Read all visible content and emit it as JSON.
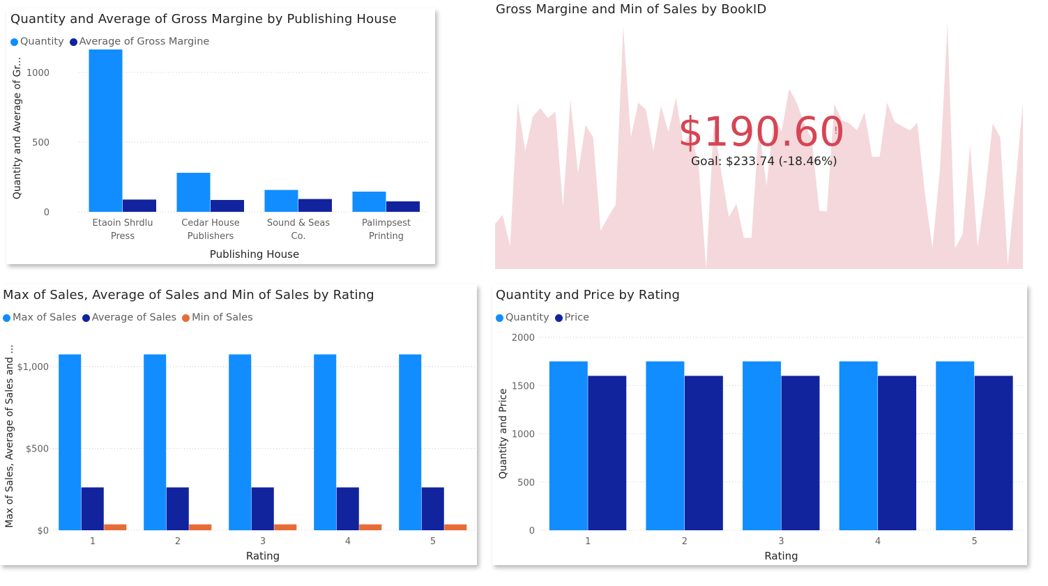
{
  "colors": {
    "light_blue": "#118DFF",
    "dark_blue": "#12239E",
    "orange": "#E66C37",
    "kpi_red": "#D64554",
    "kpi_area": "#F5D8DC",
    "text": "#252423",
    "muted": "#605E5C",
    "grid": "#C8C6C4"
  },
  "icons": {
    "legend_marker": "circle-marker-icon"
  },
  "kpi": {
    "title": "Gross Margine and Min of Sales by BookID",
    "value": "$190.60",
    "indicator": "!",
    "goal_text": "Goal: $233.74 (-18.46%)"
  },
  "chart_data": [
    {
      "id": "publishing",
      "type": "bar",
      "title": "Quantity and Average of Gross Margine by Publishing House",
      "xlabel": "Publishing House",
      "ylabel": "Quantity and Average of Gr...",
      "categories": [
        [
          "Etaoin Shrdlu",
          "Press"
        ],
        [
          "Cedar House",
          "Publishers"
        ],
        [
          "Sound & Seas",
          "Co."
        ],
        [
          "Palimpsest",
          "Printing"
        ]
      ],
      "series": [
        {
          "name": "Quantity",
          "color": "#118DFF",
          "values": [
            1165,
            280,
            157,
            145
          ]
        },
        {
          "name": "Average of Gross Margine",
          "color": "#12239E",
          "values": [
            88,
            85,
            92,
            75
          ]
        }
      ],
      "ylim": [
        0,
        1200
      ],
      "yticks": [
        0,
        500,
        1000
      ],
      "ytick_labels": [
        "0",
        "500",
        "1000"
      ],
      "grid": true,
      "legend": "top-left"
    },
    {
      "id": "kpi_trend",
      "type": "area",
      "title": "Gross Margine and Min of Sales by BookID",
      "values": [
        65,
        78,
        33,
        240,
        170,
        220,
        232,
        218,
        227,
        90,
        245,
        138,
        208,
        190,
        55,
        75,
        93,
        350,
        190,
        240,
        230,
        170,
        235,
        198,
        247,
        180,
        197,
        148,
        0,
        210,
        140,
        75,
        94,
        45,
        45,
        207,
        120,
        220,
        198,
        260,
        240,
        210,
        188,
        84,
        83,
        238,
        215,
        210,
        200,
        226,
        162,
        162,
        240,
        212,
        206,
        200,
        211,
        110,
        30,
        143,
        355,
        30,
        50,
        180,
        32,
        110,
        210,
        190,
        5,
        120,
        240
      ],
      "ylim": [
        0,
        360
      ]
    },
    {
      "id": "sales_rating",
      "type": "bar",
      "title": "Max of Sales, Average of Sales and Min of Sales by Rating",
      "xlabel": "Rating",
      "ylabel": "Max of Sales, Average of Sales and ...",
      "categories": [
        "1",
        "2",
        "3",
        "4",
        "5"
      ],
      "series": [
        {
          "name": "Max of Sales",
          "color": "#118DFF",
          "values": [
            1075,
            1075,
            1075,
            1075,
            1075
          ]
        },
        {
          "name": "Average of Sales",
          "color": "#12239E",
          "values": [
            262,
            262,
            262,
            262,
            262
          ]
        },
        {
          "name": "Min of Sales",
          "color": "#E66C37",
          "values": [
            36,
            36,
            36,
            36,
            36
          ]
        }
      ],
      "ylim": [
        0,
        1150
      ],
      "yticks": [
        0,
        500,
        1000
      ],
      "ytick_labels": [
        "$0",
        "$500",
        "$1,000"
      ],
      "grid": true,
      "legend": "top-left"
    },
    {
      "id": "qty_price_rating",
      "type": "bar",
      "title": "Quantity and Price by Rating",
      "xlabel": "Rating",
      "ylabel": "Quantity and Price",
      "categories": [
        "1",
        "2",
        "3",
        "4",
        "5"
      ],
      "series": [
        {
          "name": "Quantity",
          "color": "#118DFF",
          "values": [
            1750,
            1750,
            1750,
            1750,
            1750
          ]
        },
        {
          "name": "Price",
          "color": "#12239E",
          "values": [
            1600,
            1600,
            1600,
            1600,
            1600
          ]
        }
      ],
      "ylim": [
        0,
        2000
      ],
      "yticks": [
        0,
        500,
        1000,
        1500,
        2000
      ],
      "ytick_labels": [
        "0",
        "500",
        "1000",
        "1500",
        "2000"
      ],
      "grid": true,
      "legend": "top-left"
    }
  ]
}
